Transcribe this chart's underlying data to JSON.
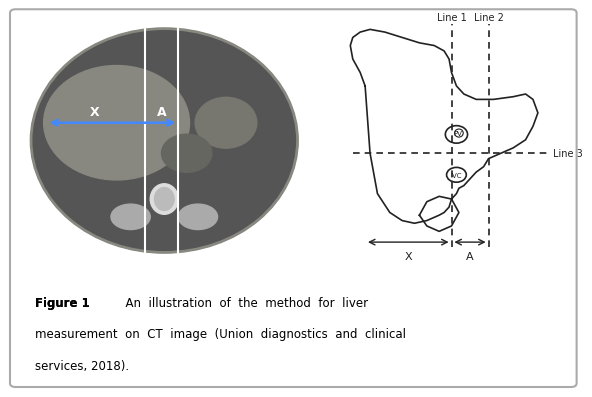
{
  "background_color": "#f0f0f0",
  "panel_bg": "#ffffff",
  "caption_bold": "Figure 1",
  "caption_text": "  An  illustration  of  the  method  for  liver\nmeasurement  on  CT  image  (Union  diagnostics  and  clinical\nservices, 2018).",
  "line1_label": "Line 1",
  "line2_label": "Line 2",
  "line3_label": "Line 3",
  "x_label": "X",
  "a_label": "A",
  "pv_label": "PV",
  "ivc_label": "IVC",
  "diagram_line_color": "#222222",
  "dashed_line_color": "#444444"
}
